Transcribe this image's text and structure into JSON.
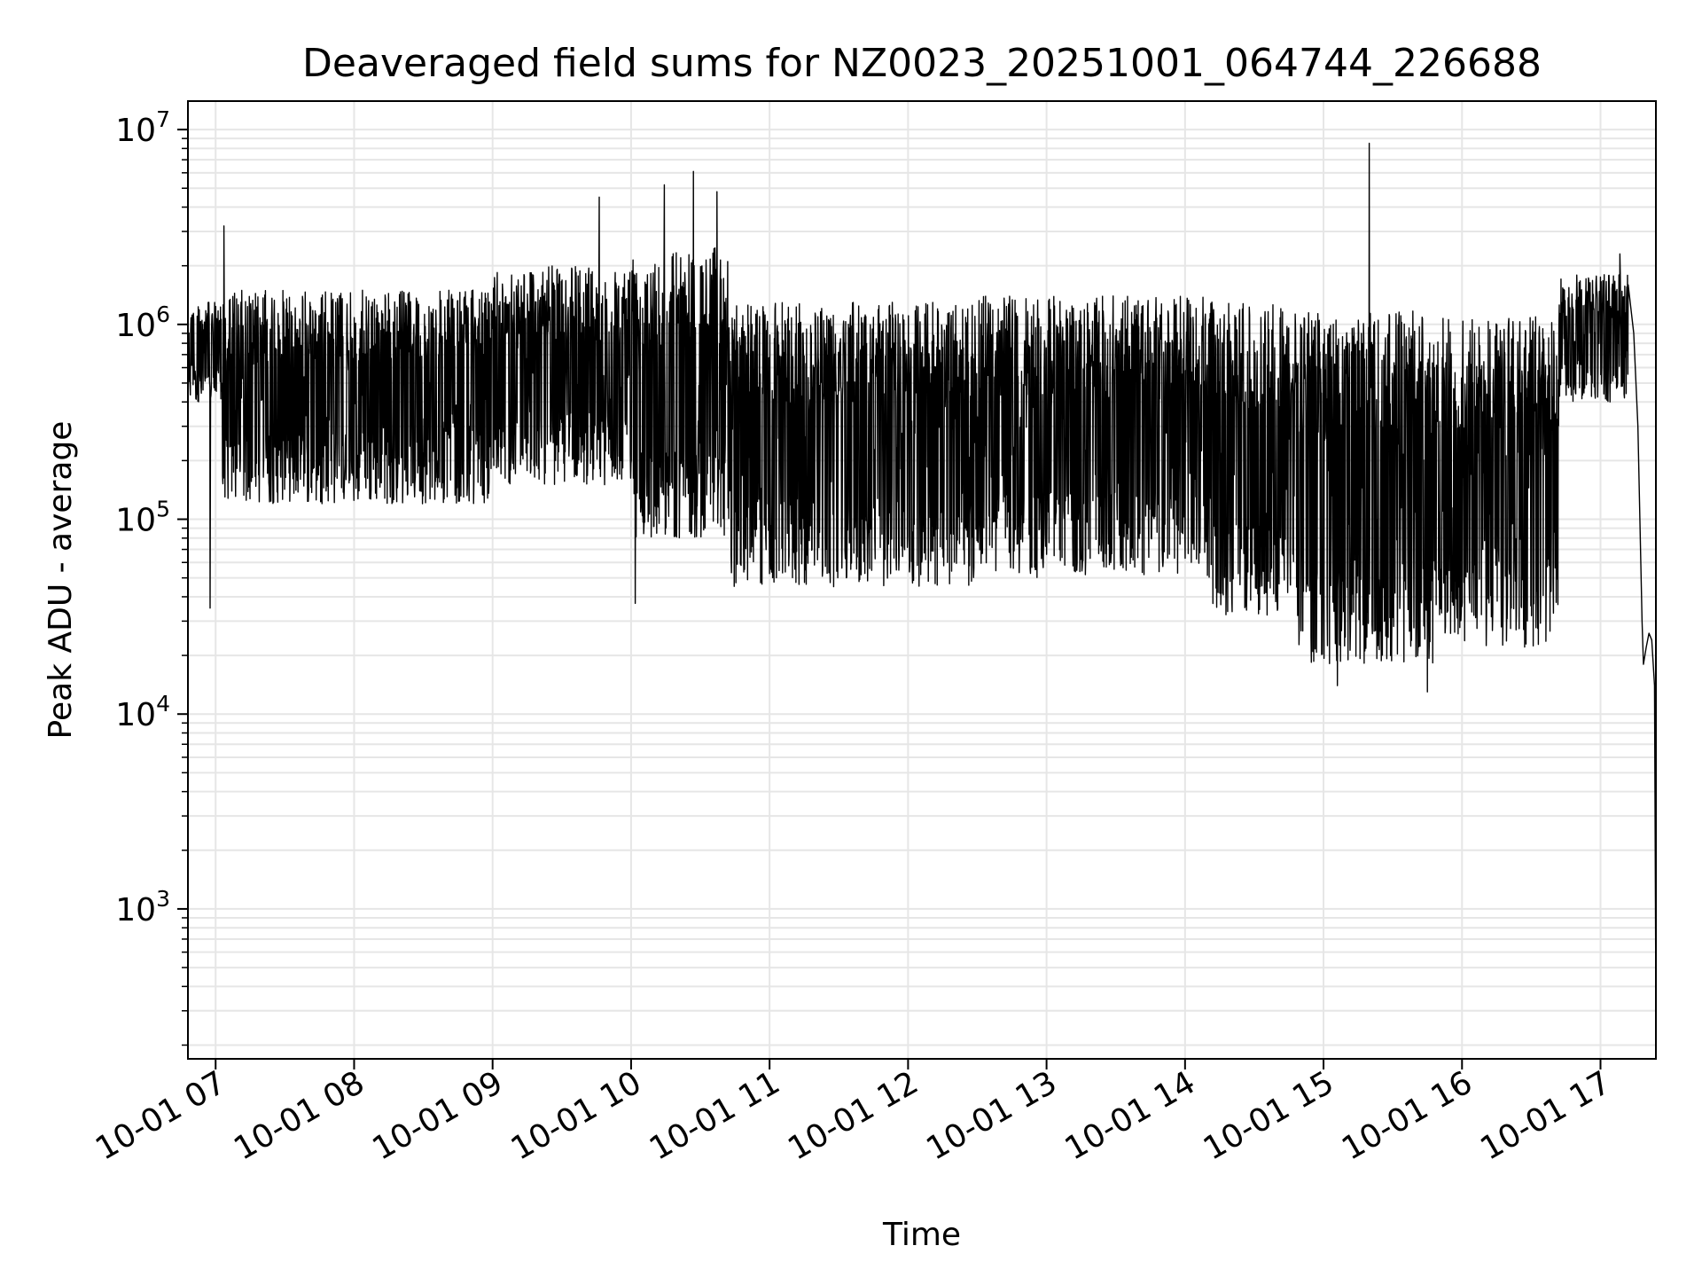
{
  "chart_data": {
    "type": "line",
    "title": "Deaveraged field sums for NZ0023_20251001_064744_226688",
    "xlabel": "Time",
    "ylabel": "Peak ADU - average",
    "yscale": "log",
    "ylim": [
      170,
      14000000
    ],
    "xlim_hours": [
      6.8,
      17.4
    ],
    "grid": true,
    "x_ticks": [
      {
        "label": "10-01 07",
        "hour": 7
      },
      {
        "label": "10-01 08",
        "hour": 8
      },
      {
        "label": "10-01 09",
        "hour": 9
      },
      {
        "label": "10-01 10",
        "hour": 10
      },
      {
        "label": "10-01 11",
        "hour": 11
      },
      {
        "label": "10-01 12",
        "hour": 12
      },
      {
        "label": "10-01 13",
        "hour": 13
      },
      {
        "label": "10-01 14",
        "hour": 14
      },
      {
        "label": "10-01 15",
        "hour": 15
      },
      {
        "label": "10-01 16",
        "hour": 16
      },
      {
        "label": "10-01 17",
        "hour": 17
      }
    ],
    "y_ticks": [
      {
        "base": "10",
        "exp": "3",
        "value": 1000
      },
      {
        "base": "10",
        "exp": "4",
        "value": 10000
      },
      {
        "base": "10",
        "exp": "5",
        "value": 100000
      },
      {
        "base": "10",
        "exp": "6",
        "value": 1000000
      },
      {
        "base": "10",
        "exp": "7",
        "value": 10000000
      }
    ],
    "series": [
      {
        "name": "field sums",
        "color": "#000000",
        "band_segments": [
          {
            "t": [
              6.8,
              7.05
            ],
            "low": 400000,
            "high": 1300000
          },
          {
            "t": [
              7.05,
              9.0
            ],
            "low": 120000,
            "high": 1500000
          },
          {
            "t": [
              9.0,
              10.0
            ],
            "low": 150000,
            "high": 2000000
          },
          {
            "t": [
              10.0,
              10.7
            ],
            "low": 80000,
            "high": 2500000
          },
          {
            "t": [
              10.7,
              12.5
            ],
            "low": 45000,
            "high": 1300000
          },
          {
            "t": [
              12.5,
              14.2
            ],
            "low": 50000,
            "high": 1400000
          },
          {
            "t": [
              14.2,
              14.8
            ],
            "low": 32000,
            "high": 1300000
          },
          {
            "t": [
              14.8,
              15.8
            ],
            "low": 18000,
            "high": 1200000
          },
          {
            "t": [
              15.8,
              16.7
            ],
            "low": 22000,
            "high": 1100000
          },
          {
            "t": [
              16.7,
              17.2
            ],
            "low": 400000,
            "high": 1800000
          }
        ],
        "spikes": [
          {
            "hour": 7.06,
            "value": 3200000
          },
          {
            "hour": 6.96,
            "value": 35000
          },
          {
            "hour": 9.77,
            "value": 4500000
          },
          {
            "hour": 10.03,
            "value": 37000
          },
          {
            "hour": 10.24,
            "value": 5200000
          },
          {
            "hour": 10.45,
            "value": 6100000
          },
          {
            "hour": 10.62,
            "value": 4800000
          },
          {
            "hour": 15.33,
            "value": 8500000
          },
          {
            "hour": 15.1,
            "value": 14000
          },
          {
            "hour": 15.75,
            "value": 13000
          },
          {
            "hour": 17.14,
            "value": 2300000
          }
        ],
        "tail": [
          {
            "hour": 17.24,
            "value": 900000
          },
          {
            "hour": 17.27,
            "value": 300000
          },
          {
            "hour": 17.3,
            "value": 30000
          },
          {
            "hour": 17.31,
            "value": 18000
          },
          {
            "hour": 17.33,
            "value": 22000
          },
          {
            "hour": 17.35,
            "value": 26000
          },
          {
            "hour": 17.37,
            "value": 24000
          },
          {
            "hour": 17.39,
            "value": 14000
          },
          {
            "hour": 17.4,
            "value": 300
          }
        ]
      }
    ]
  }
}
